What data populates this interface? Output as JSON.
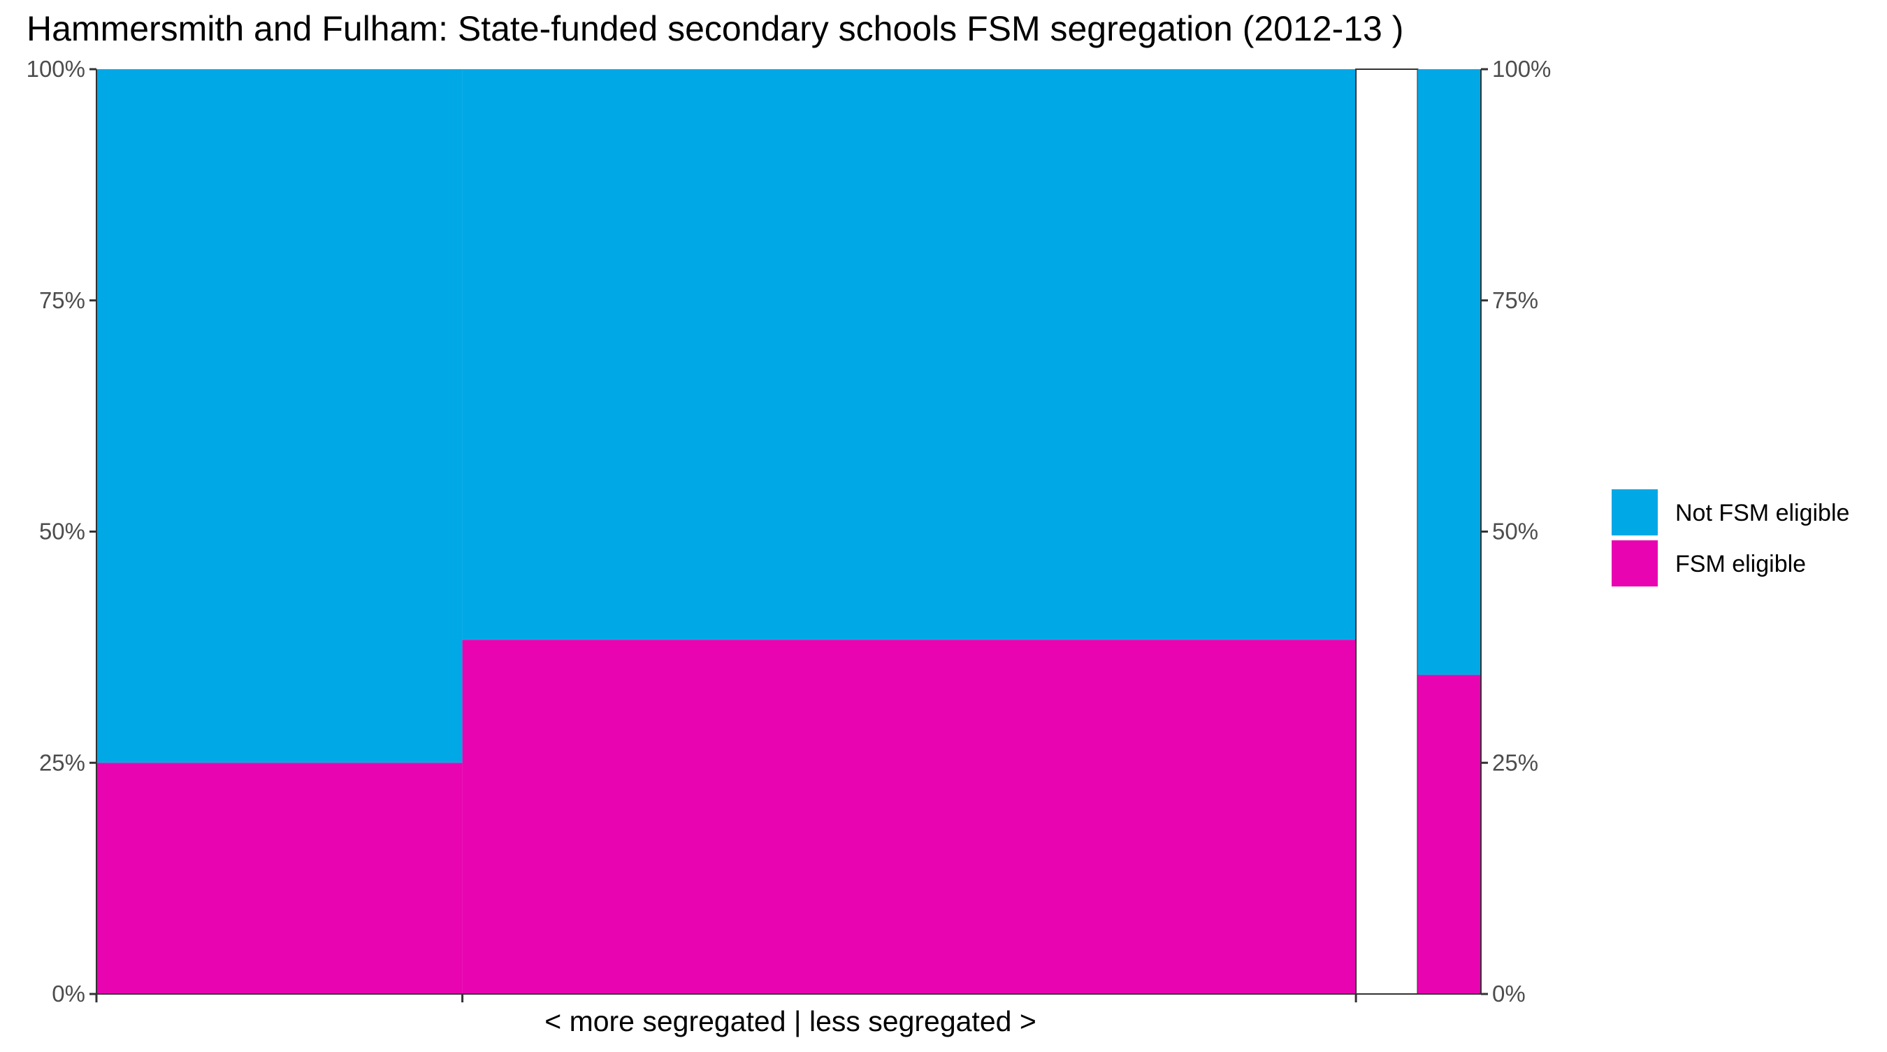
{
  "chart_data": {
    "type": "mosaic",
    "title": "Hammersmith and Fulham: State-funded secondary schools FSM segregation (2012-13 )",
    "xlabel": "< more segregated | less segregated >",
    "ylabel": "",
    "ylim": [
      0,
      1
    ],
    "y_ticks": [
      "0%",
      "25%",
      "50%",
      "75%",
      "100%"
    ],
    "y_tick_values": [
      0,
      0.25,
      0.5,
      0.75,
      1.0
    ],
    "series": [
      {
        "name": "Not FSM eligible",
        "color": "#00A8E6"
      },
      {
        "name": "FSM eligible",
        "color": "#E805B1"
      }
    ],
    "columns": [
      {
        "kind": "data",
        "width_share": 0.2643,
        "fsm_share": 0.25
      },
      {
        "kind": "data",
        "width_share": 0.6454,
        "fsm_share": 0.383
      },
      {
        "kind": "gap",
        "width_share": 0.0446
      },
      {
        "kind": "summary",
        "width_share": 0.0457,
        "fsm_share": 0.345
      }
    ],
    "legend_position": "right",
    "grid": false
  }
}
